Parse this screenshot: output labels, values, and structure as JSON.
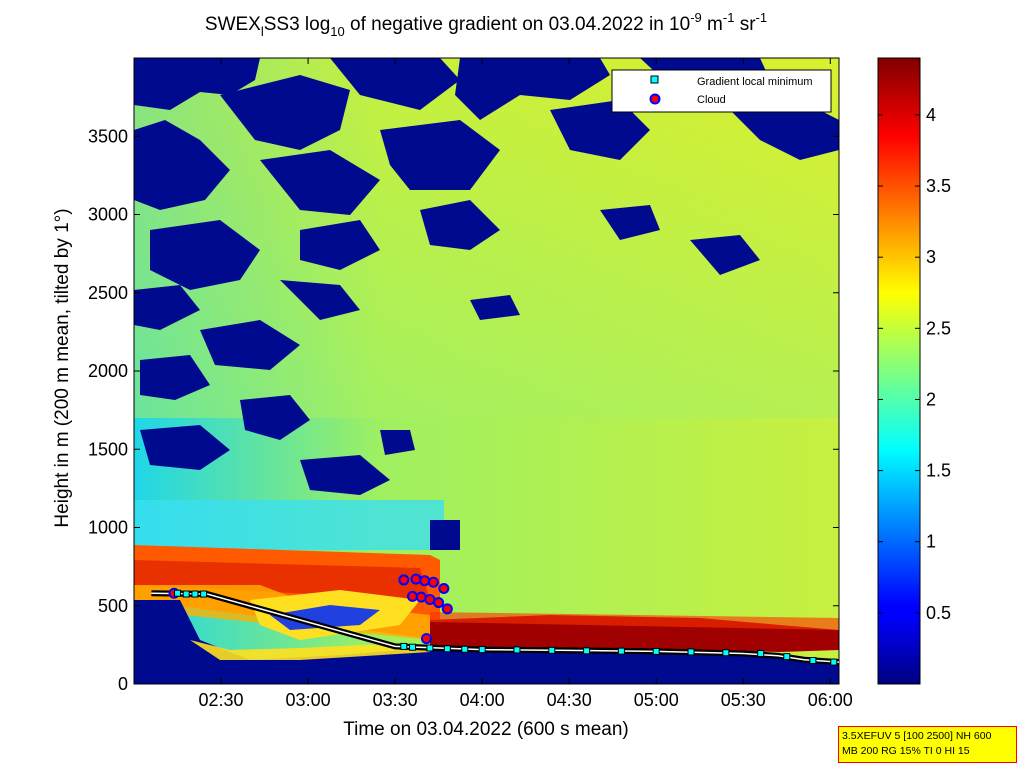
{
  "chart_data": {
    "type": "heatmap",
    "title": {
      "instrument": "SWEX",
      "instrument_sub": "l",
      "rest1": "SS3 log",
      "log_base": "10",
      "rest2": " of negative gradient on 03.04.2022 in 10",
      "exp1": "-9",
      "unit_mid": " m",
      "exp2": "-1",
      "unit_end": " sr",
      "exp3": "-1"
    },
    "xlabel": "Time on 03.04.2022 (600 s mean)",
    "ylabel": "Height in m (200 m mean, tilted by 1°)",
    "x_range_minutes": [
      2.0,
      6.05
    ],
    "x_ticks": [
      {
        "value": 2.5,
        "label": "02:30"
      },
      {
        "value": 3.0,
        "label": "03:00"
      },
      {
        "value": 3.5,
        "label": "03:30"
      },
      {
        "value": 4.0,
        "label": "04:00"
      },
      {
        "value": 4.5,
        "label": "04:30"
      },
      {
        "value": 5.0,
        "label": "05:00"
      },
      {
        "value": 5.5,
        "label": "05:30"
      },
      {
        "value": 6.0,
        "label": "06:00"
      }
    ],
    "ylim": [
      0,
      4000
    ],
    "y_ticks": [
      0,
      500,
      1000,
      1500,
      2000,
      2500,
      3000,
      3500
    ],
    "colorbar": {
      "range": [
        0,
        4.4
      ],
      "ticks": [
        0.5,
        1,
        1.5,
        2,
        2.5,
        3,
        3.5,
        4
      ],
      "colormap": "jet"
    },
    "legend": {
      "placement": "top-right",
      "entries": [
        {
          "name": "Gradient local minimum",
          "marker": "square",
          "color": "#00ffff"
        },
        {
          "name": "Cloud",
          "marker": "circle",
          "color": "#ff0000"
        }
      ]
    },
    "gradient_local_minimum": [
      {
        "x": 2.25,
        "y": 580
      },
      {
        "x": 2.3,
        "y": 575
      },
      {
        "x": 2.35,
        "y": 575
      },
      {
        "x": 2.4,
        "y": 575
      },
      {
        "x": 3.55,
        "y": 240
      },
      {
        "x": 3.6,
        "y": 235
      },
      {
        "x": 3.7,
        "y": 230
      },
      {
        "x": 3.8,
        "y": 225
      },
      {
        "x": 3.9,
        "y": 222
      },
      {
        "x": 4.0,
        "y": 220
      },
      {
        "x": 4.2,
        "y": 218
      },
      {
        "x": 4.4,
        "y": 215
      },
      {
        "x": 4.6,
        "y": 212
      },
      {
        "x": 4.8,
        "y": 210
      },
      {
        "x": 5.0,
        "y": 208
      },
      {
        "x": 5.2,
        "y": 205
      },
      {
        "x": 5.4,
        "y": 200
      },
      {
        "x": 5.6,
        "y": 195
      },
      {
        "x": 5.75,
        "y": 175
      },
      {
        "x": 5.9,
        "y": 150
      },
      {
        "x": 6.02,
        "y": 140
      }
    ],
    "cloud": [
      {
        "x": 2.23,
        "y": 580
      },
      {
        "x": 3.55,
        "y": 665
      },
      {
        "x": 3.6,
        "y": 560
      },
      {
        "x": 3.62,
        "y": 670
      },
      {
        "x": 3.65,
        "y": 555
      },
      {
        "x": 3.67,
        "y": 660
      },
      {
        "x": 3.7,
        "y": 540
      },
      {
        "x": 3.72,
        "y": 650
      },
      {
        "x": 3.75,
        "y": 520
      },
      {
        "x": 3.78,
        "y": 610
      },
      {
        "x": 3.8,
        "y": 480
      },
      {
        "x": 3.68,
        "y": 290
      }
    ],
    "boundary_line": [
      [
        2.1,
        580
      ],
      [
        2.42,
        575
      ],
      [
        3.5,
        240
      ],
      [
        4.0,
        220
      ],
      [
        4.5,
        215
      ],
      [
        5.0,
        208
      ],
      [
        5.5,
        195
      ],
      [
        5.7,
        180
      ],
      [
        5.85,
        155
      ],
      [
        6.05,
        140
      ]
    ]
  },
  "info_box": {
    "line1": "3.5XEFUV 5 [100 2500] NH 600",
    "line2": "MB 200 RG 15% TI 0 HI 15"
  }
}
